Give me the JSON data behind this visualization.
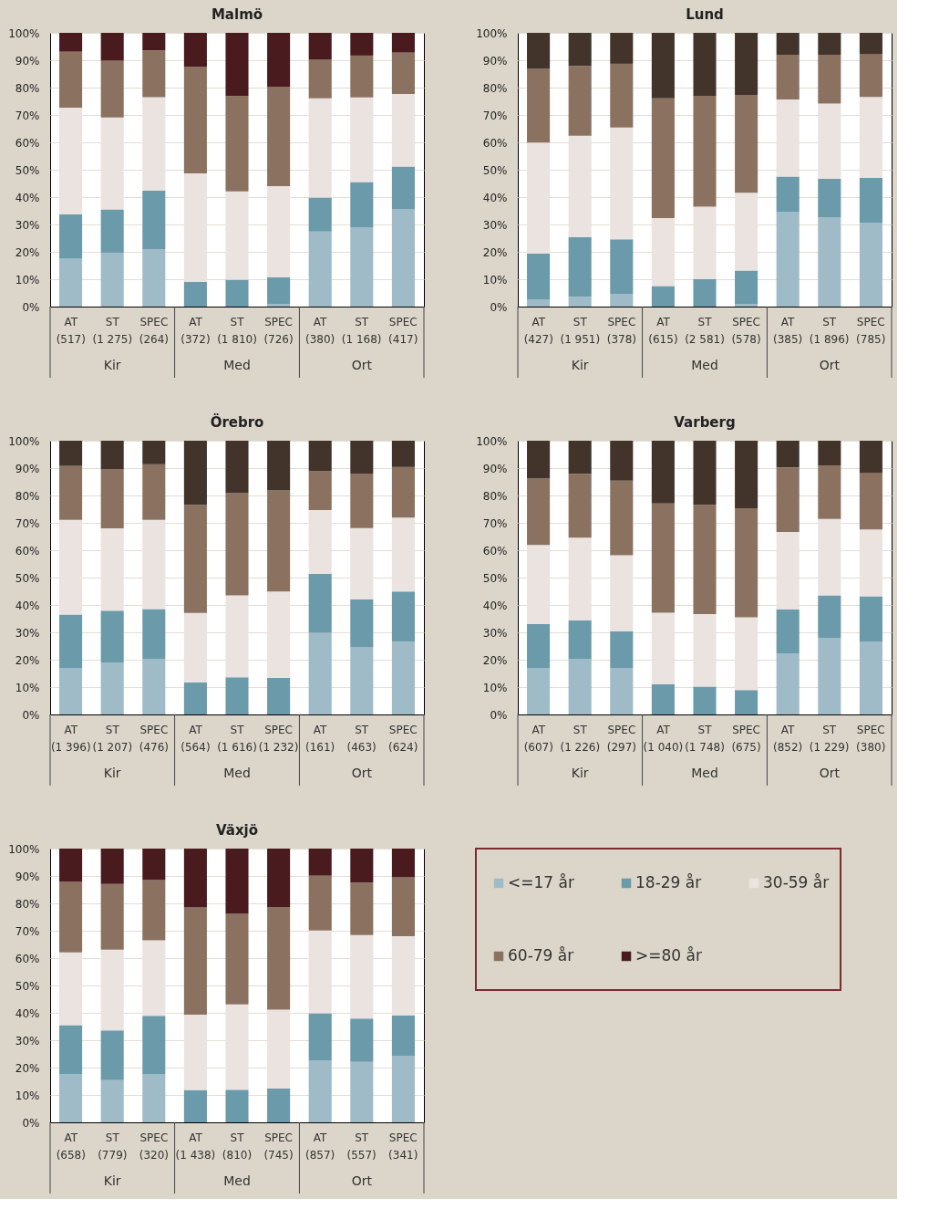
{
  "chart_data": [
    {
      "type": "bar",
      "stacked": true,
      "title": "Malmö",
      "categories": [
        "AT (517)",
        "ST (1 275)",
        "SPEC (264)",
        "AT (372)",
        "ST (1 810)",
        "SPEC (726)",
        "AT (380)",
        "ST (1 168)",
        "SPEC (417)"
      ],
      "annotations": [
        "Kir",
        "Med",
        "Ort"
      ],
      "ylim": [
        0,
        100
      ],
      "yticks": [
        {
          "value": 0,
          "label": "0%"
        },
        {
          "value": 10,
          "label": "10%"
        },
        {
          "value": 20,
          "label": "20%"
        },
        {
          "value": 30,
          "label": "30%"
        },
        {
          "value": 40,
          "label": "40%"
        },
        {
          "value": 50,
          "label": "50%"
        },
        {
          "value": 60,
          "label": "60%"
        },
        {
          "value": 70,
          "label": "70%"
        },
        {
          "value": 80,
          "label": "80%"
        },
        {
          "value": 90,
          "label": "90%"
        },
        {
          "value": 100,
          "label": "100%"
        }
      ],
      "grid": "y",
      "legend": "bottom right",
      "series": [
        {
          "name": "<=17 år",
          "color": "#9fbbc7",
          "values": [
            17.5,
            19.6,
            21.0,
            0,
            0,
            1.0,
            27.4,
            28.8,
            35.5
          ]
        },
        {
          "name": "18-29 år",
          "color": "#6b9aab",
          "values": [
            16.2,
            15.9,
            21.3,
            9.1,
            9.8,
            9.7,
            12.4,
            16.7,
            15.7
          ]
        },
        {
          "name": "30-59 år",
          "color": "#eae3df",
          "values": [
            39.0,
            33.6,
            34.2,
            39.6,
            32.3,
            33.3,
            36.3,
            30.9,
            26.5
          ]
        },
        {
          "name": "60-79 år",
          "color": "#8b7260",
          "values": [
            20.4,
            20.7,
            17.1,
            39.0,
            34.8,
            36.3,
            14.2,
            15.3,
            15.1
          ]
        },
        {
          "name": ">=80 år",
          "color": "#4a1b1e",
          "values": [
            6.9,
            10.2,
            6.4,
            12.3,
            23.1,
            19.7,
            9.7,
            8.3,
            7.2
          ]
        }
      ]
    },
    {
      "type": "bar",
      "stacked": true,
      "title": "Lund",
      "categories": [
        "AT (427)",
        "ST (1 951)",
        "SPEC (378)",
        "AT (615)",
        "ST (2 581)",
        "SPEC (578)",
        "AT (385)",
        "ST (1 896)",
        "SPEC (785)"
      ],
      "annotations": [
        "Kir",
        "Med",
        "Ort"
      ],
      "ylim": [
        0,
        100
      ],
      "yticks": [
        {
          "value": 0,
          "label": "0%"
        },
        {
          "value": 10,
          "label": "10%"
        },
        {
          "value": 20,
          "label": "20%"
        },
        {
          "value": 30,
          "label": "30%"
        },
        {
          "value": 40,
          "label": "40%"
        },
        {
          "value": 50,
          "label": "50%"
        },
        {
          "value": 60,
          "label": "60%"
        },
        {
          "value": 70,
          "label": "70%"
        },
        {
          "value": 80,
          "label": "80%"
        },
        {
          "value": 90,
          "label": "90%"
        },
        {
          "value": 100,
          "label": "100%"
        }
      ],
      "grid": "y",
      "series": [
        {
          "color": "#9fbbc7",
          "values": [
            2.5,
            3.6,
            4.7,
            0,
            0,
            0.8,
            34.5,
            32.7,
            30.7
          ]
        },
        {
          "color": "#6b9aab",
          "values": [
            16.8,
            21.8,
            19.9,
            7.5,
            10.1,
            12.4,
            13.0,
            14.0,
            16.3
          ]
        },
        {
          "color": "#eae3df",
          "values": [
            40.6,
            37.0,
            40.8,
            24.8,
            26.4,
            28.4,
            28.2,
            27.5,
            29.6
          ]
        },
        {
          "color": "#8b7260",
          "values": [
            26.9,
            25.5,
            23.3,
            43.8,
            40.5,
            35.7,
            16.3,
            17.8,
            15.7
          ]
        },
        {
          "color": "#42342b",
          "values": [
            13.2,
            12.1,
            11.3,
            23.9,
            23.0,
            22.7,
            8.0,
            8.0,
            7.7
          ]
        }
      ]
    },
    {
      "type": "bar",
      "stacked": true,
      "title": "Örebro",
      "categories": [
        "AT (1 396)",
        "ST (1 207)",
        "SPEC (476)",
        "AT (564)",
        "ST (1 616)",
        "SPEC (1 232)",
        "AT (161)",
        "ST (463)",
        "SPEC (624)"
      ],
      "annotations": [
        "Kir",
        "Med",
        "Ort"
      ],
      "ylim": [
        0,
        100
      ],
      "yticks": [
        {
          "value": 0,
          "label": "0%"
        },
        {
          "value": 10,
          "label": "10%"
        },
        {
          "value": 20,
          "label": "20%"
        },
        {
          "value": 30,
          "label": "30%"
        },
        {
          "value": 40,
          "label": "40%"
        },
        {
          "value": 50,
          "label": "50%"
        },
        {
          "value": 60,
          "label": "60%"
        },
        {
          "value": 70,
          "label": "70%"
        },
        {
          "value": 80,
          "label": "80%"
        },
        {
          "value": 90,
          "label": "90%"
        },
        {
          "value": 100,
          "label": "100%"
        }
      ],
      "grid": "y",
      "series": [
        {
          "color": "#9fbbc7",
          "values": [
            16.8,
            18.8,
            20.3,
            0,
            0,
            0,
            29.8,
            24.5,
            26.6
          ]
        },
        {
          "color": "#6b9aab",
          "values": [
            19.7,
            19.1,
            18.2,
            11.7,
            13.6,
            13.3,
            21.6,
            17.5,
            18.3
          ]
        },
        {
          "color": "#eae3df",
          "values": [
            34.6,
            30.1,
            32.6,
            25.4,
            29.9,
            31.6,
            23.3,
            26.1,
            27.0
          ]
        },
        {
          "color": "#8b7260",
          "values": [
            19.7,
            21.5,
            20.3,
            39.5,
            37.3,
            36.9,
            14.2,
            19.9,
            18.5
          ]
        },
        {
          "color": "#42342b",
          "values": [
            9.2,
            10.5,
            8.6,
            23.4,
            19.2,
            18.2,
            11.1,
            12.0,
            9.6
          ]
        }
      ]
    },
    {
      "type": "bar",
      "stacked": true,
      "title": "Varberg",
      "categories": [
        "AT (607)",
        "ST (1 226)",
        "SPEC (297)",
        "AT (1 040)",
        "ST (1 748)",
        "SPEC (675)",
        "AT (852)",
        "ST (1 229)",
        "SPEC (380)"
      ],
      "annotations": [
        "Kir",
        "Med",
        "Ort"
      ],
      "ylim": [
        0,
        100
      ],
      "yticks": [
        {
          "value": 0,
          "label": "0%"
        },
        {
          "value": 10,
          "label": "10%"
        },
        {
          "value": 20,
          "label": "20%"
        },
        {
          "value": 30,
          "label": "30%"
        },
        {
          "value": 40,
          "label": "40%"
        },
        {
          "value": 50,
          "label": "50%"
        },
        {
          "value": 60,
          "label": "60%"
        },
        {
          "value": 70,
          "label": "70%"
        },
        {
          "value": 80,
          "label": "80%"
        },
        {
          "value": 90,
          "label": "90%"
        },
        {
          "value": 100,
          "label": "100%"
        }
      ],
      "grid": "y",
      "series": [
        {
          "color": "#9fbbc7",
          "values": [
            16.8,
            20.3,
            17.0,
            0,
            0,
            0,
            22.2,
            27.8,
            26.5
          ]
        },
        {
          "color": "#6b9aab",
          "values": [
            16.2,
            14.0,
            13.4,
            11.1,
            10.2,
            8.9,
            16.2,
            15.7,
            16.7
          ]
        },
        {
          "color": "#eae3df",
          "values": [
            28.9,
            30.3,
            27.8,
            26.1,
            26.5,
            26.6,
            28.3,
            27.9,
            24.4
          ]
        },
        {
          "color": "#8b7260",
          "values": [
            24.3,
            23.3,
            27.2,
            39.9,
            39.9,
            39.8,
            23.5,
            19.6,
            20.7
          ]
        },
        {
          "color": "#42342b",
          "values": [
            13.8,
            12.1,
            14.6,
            22.9,
            23.4,
            24.7,
            9.8,
            9.0,
            11.7
          ]
        }
      ]
    },
    {
      "type": "bar",
      "stacked": true,
      "title": "Växjö",
      "categories": [
        "AT (658)",
        "ST (779)",
        "SPEC (320)",
        "AT (1 438)",
        "ST (810)",
        "SPEC (745)",
        "AT (857)",
        "ST (557)",
        "SPEC (341)"
      ],
      "annotations": [
        "Kir",
        "Med",
        "Ort"
      ],
      "ylim": [
        0,
        100
      ],
      "yticks": [
        {
          "value": 0,
          "label": "0%"
        },
        {
          "value": 10,
          "label": "10%"
        },
        {
          "value": 20,
          "label": "20%"
        },
        {
          "value": 30,
          "label": "30%"
        },
        {
          "value": 40,
          "label": "40%"
        },
        {
          "value": 50,
          "label": "50%"
        },
        {
          "value": 60,
          "label": "60%"
        },
        {
          "value": 70,
          "label": "70%"
        },
        {
          "value": 80,
          "label": "80%"
        },
        {
          "value": 90,
          "label": "90%"
        },
        {
          "value": 100,
          "label": "100%"
        }
      ],
      "grid": "y",
      "series": [
        {
          "color": "#9fbbc7",
          "values": [
            17.7,
            15.4,
            17.5,
            0,
            0,
            0,
            22.7,
            22.1,
            24.2
          ]
        },
        {
          "color": "#6b9aab",
          "values": [
            17.8,
            18.2,
            21.4,
            11.8,
            11.9,
            12.3,
            17.1,
            15.8,
            14.9
          ]
        },
        {
          "color": "#eae3df",
          "values": [
            26.6,
            29.5,
            27.6,
            27.5,
            31.2,
            28.9,
            30.3,
            30.5,
            28.9
          ]
        },
        {
          "color": "#8b7260",
          "values": [
            25.7,
            24.0,
            22.0,
            39.2,
            33.1,
            37.5,
            20.0,
            19.2,
            21.5
          ]
        },
        {
          "color": "#4a1b1e",
          "values": [
            12.2,
            12.9,
            11.5,
            21.5,
            23.8,
            21.3,
            9.9,
            12.4,
            10.5
          ]
        }
      ]
    }
  ]
}
